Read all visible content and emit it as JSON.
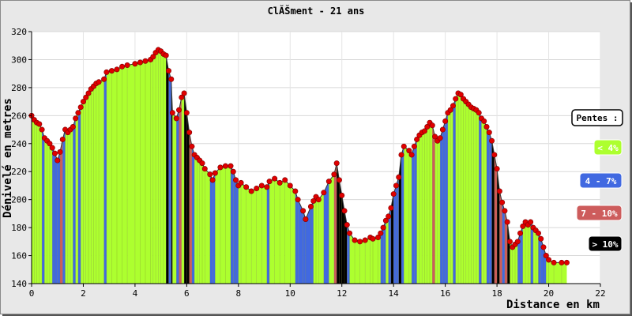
{
  "chart_data": {
    "type": "area",
    "title": "ClĂŠment - 21 ans",
    "xlabel": "Distance en km",
    "ylabel": "Dénivelé en metres",
    "xlim": [
      0,
      22
    ],
    "ylim": [
      140,
      320
    ],
    "x_ticks": [
      0,
      2,
      4,
      6,
      8,
      10,
      12,
      14,
      16,
      18,
      20,
      22
    ],
    "y_ticks": [
      140,
      160,
      180,
      200,
      220,
      240,
      260,
      280,
      300,
      320
    ],
    "grid": true,
    "legend_title": "Pentes :",
    "legend": [
      {
        "label": "< 4%",
        "color": "#adff2f",
        "text_color": "#ffffff"
      },
      {
        "label": "4 - 7%",
        "color": "#4169e1",
        "text_color": "#ffffff"
      },
      {
        "label": "7 - 10%",
        "color": "#cd5c5c",
        "text_color": "#ffffff"
      },
      {
        "label": "> 10%",
        "color": "#000000",
        "text_color": "#ffffff"
      }
    ],
    "area_color": "#adff2f",
    "marker_color": "#e00000",
    "points": [
      [
        0.0,
        260
      ],
      [
        0.1,
        257
      ],
      [
        0.2,
        255
      ],
      [
        0.3,
        254
      ],
      [
        0.4,
        250
      ],
      [
        0.5,
        244
      ],
      [
        0.6,
        242
      ],
      [
        0.7,
        240
      ],
      [
        0.8,
        237
      ],
      [
        0.9,
        233
      ],
      [
        1.0,
        228
      ],
      [
        1.1,
        234
      ],
      [
        1.2,
        243
      ],
      [
        1.3,
        250
      ],
      [
        1.4,
        248
      ],
      [
        1.5,
        250
      ],
      [
        1.6,
        252
      ],
      [
        1.7,
        258
      ],
      [
        1.8,
        262
      ],
      [
        1.9,
        266
      ],
      [
        2.0,
        270
      ],
      [
        2.1,
        273
      ],
      [
        2.2,
        276
      ],
      [
        2.3,
        279
      ],
      [
        2.4,
        281
      ],
      [
        2.5,
        283
      ],
      [
        2.6,
        284
      ],
      [
        2.8,
        286
      ],
      [
        2.9,
        291
      ],
      [
        3.1,
        292
      ],
      [
        3.3,
        293
      ],
      [
        3.5,
        295
      ],
      [
        3.7,
        296
      ],
      [
        4.0,
        297
      ],
      [
        4.2,
        298
      ],
      [
        4.4,
        299
      ],
      [
        4.6,
        300
      ],
      [
        4.7,
        302
      ],
      [
        4.8,
        305
      ],
      [
        4.9,
        307
      ],
      [
        5.0,
        306
      ],
      [
        5.1,
        304
      ],
      [
        5.2,
        303
      ],
      [
        5.3,
        292
      ],
      [
        5.4,
        286
      ],
      [
        5.45,
        262
      ],
      [
        5.6,
        258
      ],
      [
        5.7,
        264
      ],
      [
        5.8,
        273
      ],
      [
        5.9,
        276
      ],
      [
        6.0,
        262
      ],
      [
        6.1,
        248
      ],
      [
        6.2,
        238
      ],
      [
        6.3,
        232
      ],
      [
        6.4,
        230
      ],
      [
        6.5,
        228
      ],
      [
        6.6,
        226
      ],
      [
        6.7,
        222
      ],
      [
        6.9,
        218
      ],
      [
        7.0,
        214
      ],
      [
        7.1,
        219
      ],
      [
        7.3,
        223
      ],
      [
        7.5,
        224
      ],
      [
        7.7,
        224
      ],
      [
        7.8,
        220
      ],
      [
        7.9,
        214
      ],
      [
        8.0,
        210
      ],
      [
        8.1,
        212
      ],
      [
        8.3,
        209
      ],
      [
        8.5,
        206
      ],
      [
        8.7,
        208
      ],
      [
        8.9,
        210
      ],
      [
        9.1,
        209
      ],
      [
        9.2,
        213
      ],
      [
        9.4,
        215
      ],
      [
        9.6,
        212
      ],
      [
        9.8,
        214
      ],
      [
        10.0,
        210
      ],
      [
        10.2,
        206
      ],
      [
        10.3,
        200
      ],
      [
        10.5,
        192
      ],
      [
        10.6,
        186
      ],
      [
        10.8,
        195
      ],
      [
        10.9,
        199
      ],
      [
        11.0,
        202
      ],
      [
        11.1,
        200
      ],
      [
        11.3,
        205
      ],
      [
        11.5,
        213
      ],
      [
        11.7,
        218
      ],
      [
        11.8,
        226
      ],
      [
        11.9,
        214
      ],
      [
        12.0,
        203
      ],
      [
        12.1,
        192
      ],
      [
        12.2,
        182
      ],
      [
        12.3,
        176
      ],
      [
        12.5,
        171
      ],
      [
        12.7,
        170
      ],
      [
        12.9,
        171
      ],
      [
        13.1,
        173
      ],
      [
        13.2,
        172
      ],
      [
        13.4,
        173
      ],
      [
        13.5,
        176
      ],
      [
        13.6,
        180
      ],
      [
        13.7,
        185
      ],
      [
        13.8,
        188
      ],
      [
        13.9,
        194
      ],
      [
        14.0,
        204
      ],
      [
        14.1,
        210
      ],
      [
        14.2,
        216
      ],
      [
        14.3,
        232
      ],
      [
        14.4,
        238
      ],
      [
        14.6,
        235
      ],
      [
        14.7,
        232
      ],
      [
        14.8,
        238
      ],
      [
        14.9,
        243
      ],
      [
        15.0,
        246
      ],
      [
        15.1,
        248
      ],
      [
        15.2,
        249
      ],
      [
        15.3,
        252
      ],
      [
        15.4,
        255
      ],
      [
        15.5,
        253
      ],
      [
        15.6,
        245
      ],
      [
        15.7,
        242
      ],
      [
        15.8,
        244
      ],
      [
        15.9,
        250
      ],
      [
        16.0,
        256
      ],
      [
        16.1,
        262
      ],
      [
        16.2,
        264
      ],
      [
        16.3,
        267
      ],
      [
        16.4,
        272
      ],
      [
        16.5,
        276
      ],
      [
        16.6,
        275
      ],
      [
        16.7,
        272
      ],
      [
        16.8,
        270
      ],
      [
        16.9,
        268
      ],
      [
        17.0,
        266
      ],
      [
        17.1,
        265
      ],
      [
        17.2,
        264
      ],
      [
        17.3,
        262
      ],
      [
        17.4,
        258
      ],
      [
        17.5,
        256
      ],
      [
        17.6,
        252
      ],
      [
        17.7,
        248
      ],
      [
        17.8,
        242
      ],
      [
        17.9,
        232
      ],
      [
        18.0,
        222
      ],
      [
        18.1,
        206
      ],
      [
        18.2,
        198
      ],
      [
        18.3,
        192
      ],
      [
        18.4,
        184
      ],
      [
        18.5,
        170
      ],
      [
        18.6,
        166
      ],
      [
        18.7,
        168
      ],
      [
        18.8,
        170
      ],
      [
        18.9,
        176
      ],
      [
        19.0,
        181
      ],
      [
        19.1,
        184
      ],
      [
        19.2,
        182
      ],
      [
        19.3,
        184
      ],
      [
        19.4,
        180
      ],
      [
        19.5,
        178
      ],
      [
        19.6,
        176
      ],
      [
        19.7,
        172
      ],
      [
        19.8,
        166
      ],
      [
        19.9,
        160
      ],
      [
        20.0,
        157
      ],
      [
        20.2,
        155
      ],
      [
        20.5,
        155
      ],
      [
        20.7,
        155
      ]
    ]
  }
}
